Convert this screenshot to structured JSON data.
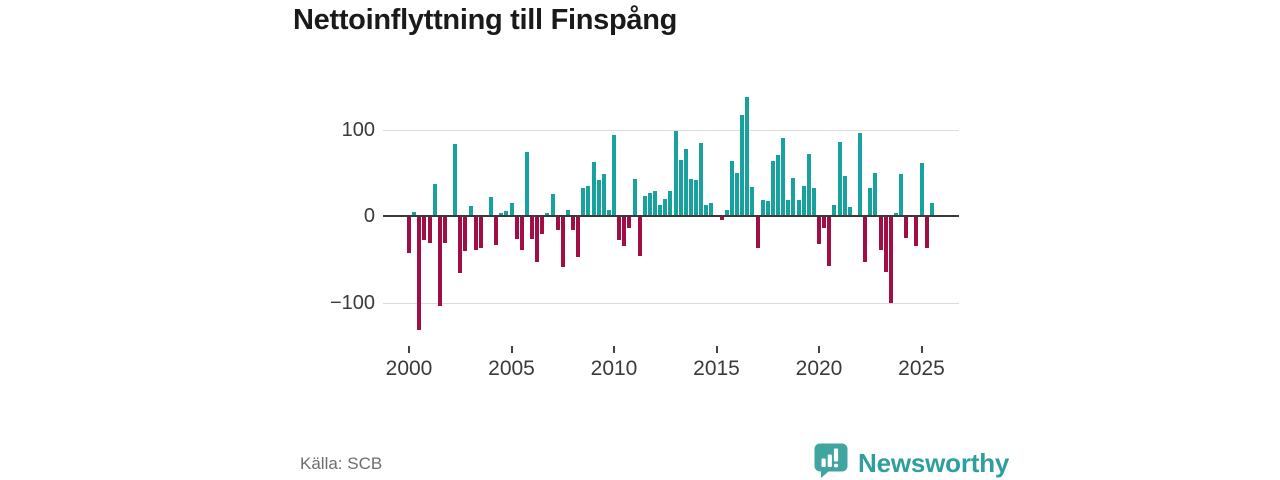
{
  "title": "Nettoinflyttning till Finspång",
  "source": "Källa: SCB",
  "branding": {
    "name": "Newsworthy",
    "icon": "bar-chart-speech-bubble-icon"
  },
  "colors": {
    "positive_bar": "#17a2a0",
    "negative_bar": "#a10d45",
    "zero_line": "#3a3a3a",
    "gridline": "#dcdcdc",
    "axis_text": "#3a3a3a",
    "brand_text": "#2f9e9e",
    "brand_icon_bg": "#40a5a1"
  },
  "chart_data": {
    "type": "bar",
    "title": "Nettoinflyttning till Finspång",
    "xlabel": "",
    "ylabel": "",
    "frequency": "quarterly",
    "x_start": "2000-Q1",
    "x_end": "2025-Q3",
    "ylim": [
      -140,
      150
    ],
    "grid": "horizontal",
    "y_ticks": [
      {
        "value": 100,
        "label": "100"
      },
      {
        "value": 0,
        "label": "0"
      },
      {
        "value": -100,
        "label": "−100"
      }
    ],
    "x_ticks": [
      {
        "label": "2000",
        "quarter_index": 0
      },
      {
        "label": "2005",
        "quarter_index": 20
      },
      {
        "label": "2010",
        "quarter_index": 40
      },
      {
        "label": "2015",
        "quarter_index": 60
      },
      {
        "label": "2020",
        "quarter_index": 80
      },
      {
        "label": "2025",
        "quarter_index": 100
      }
    ],
    "values": [
      -43,
      5,
      -132,
      -28,
      -31,
      37,
      -104,
      -31,
      0,
      83,
      -66,
      -41,
      11,
      -39,
      -37,
      0,
      22,
      -33,
      4,
      6,
      15,
      -27,
      -39,
      74,
      -27,
      -53,
      -21,
      3,
      26,
      -16,
      -59,
      7,
      -16,
      -47,
      32,
      35,
      63,
      42,
      49,
      7,
      94,
      -28,
      -35,
      -14,
      43,
      -46,
      23,
      27,
      29,
      13,
      20,
      29,
      98,
      65,
      77,
      43,
      42,
      84,
      13,
      15,
      0,
      -5,
      7,
      64,
      50,
      117,
      138,
      34,
      -37,
      18,
      17,
      64,
      70,
      90,
      18,
      44,
      18,
      35,
      72,
      32,
      -32,
      -14,
      -58,
      13,
      85,
      46,
      10,
      0,
      96,
      -53,
      32,
      50,
      -39,
      -65,
      -101,
      3,
      48,
      -26,
      0,
      -35,
      61,
      -37,
      15
    ]
  }
}
